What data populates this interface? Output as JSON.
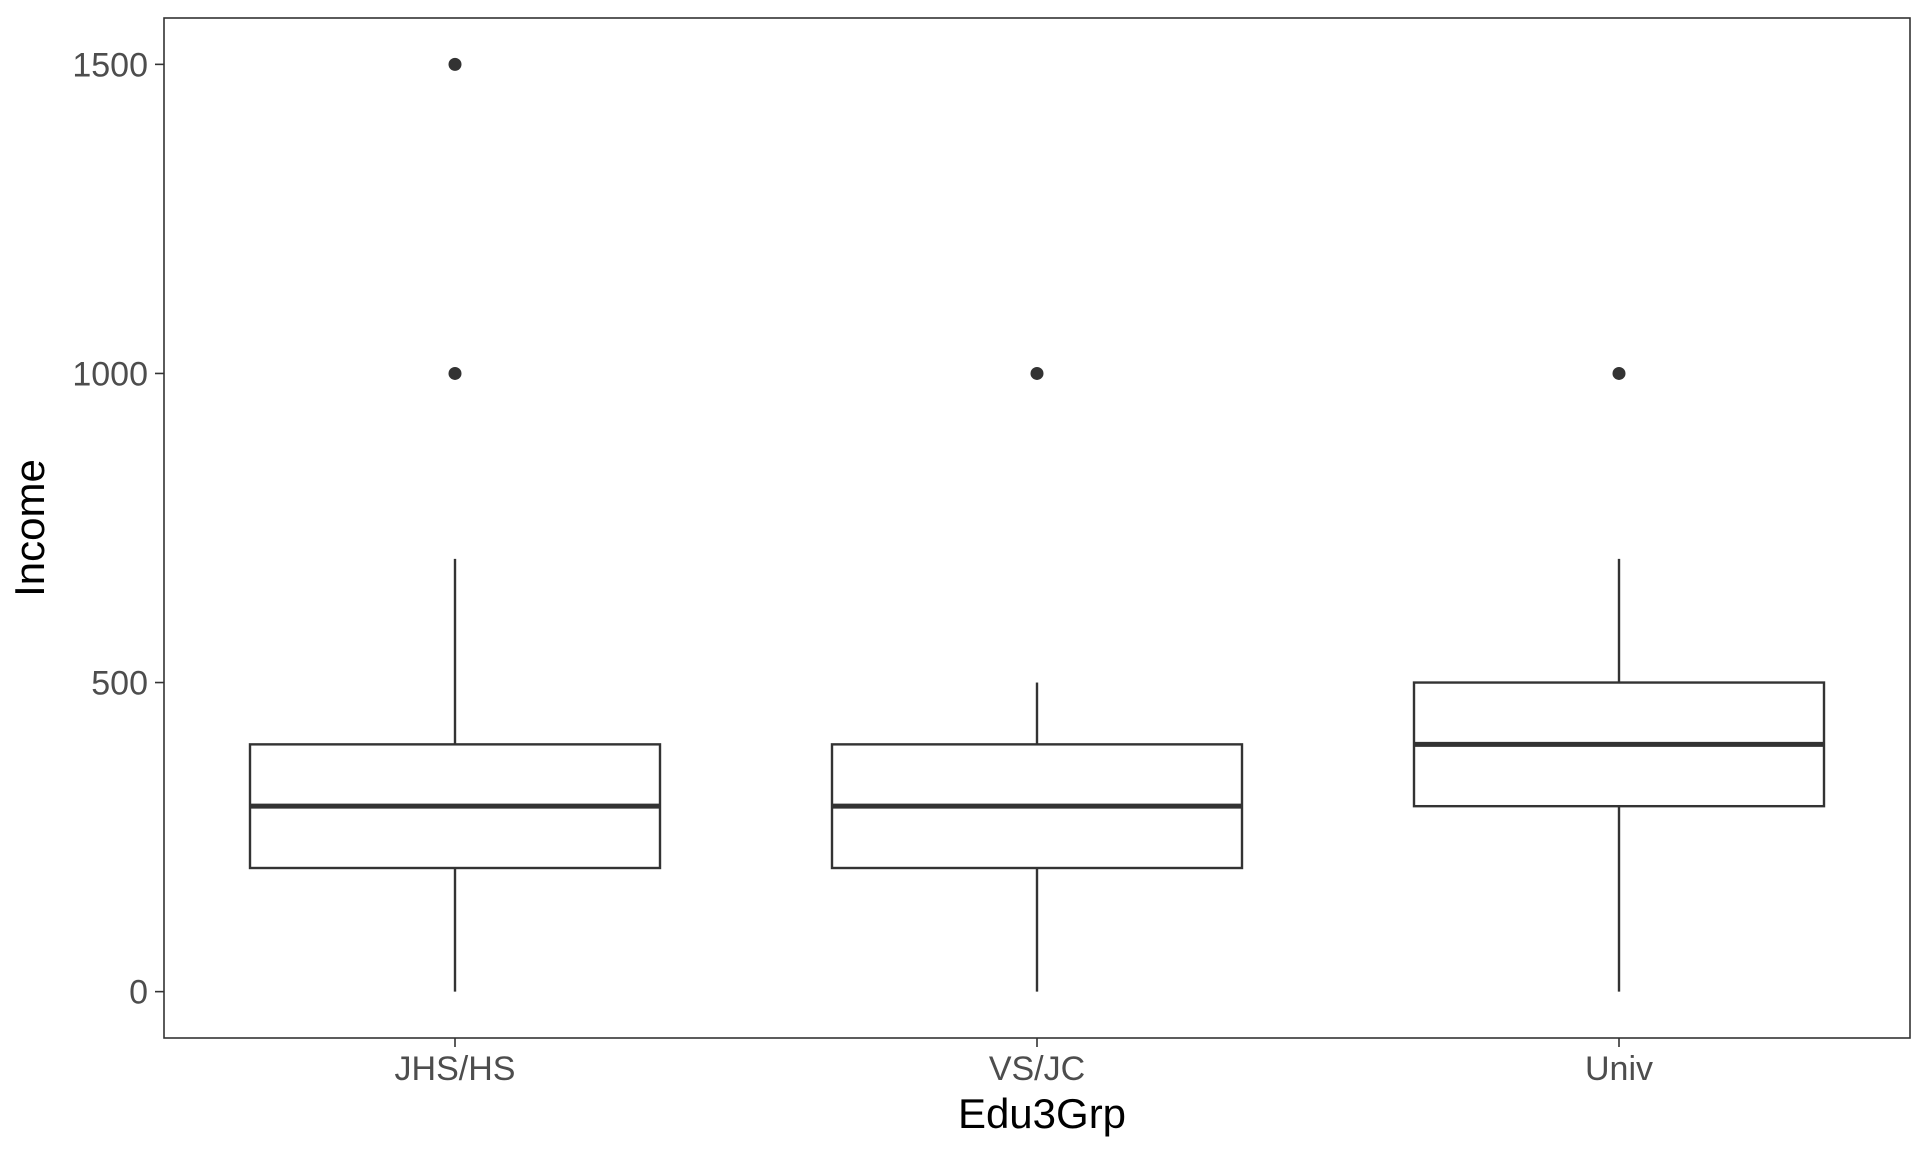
{
  "chart_data": {
    "type": "boxplot",
    "xlabel": "Edu3Grp",
    "ylabel": "Income",
    "ylim": [
      -75,
      1575
    ],
    "yticks": [
      0,
      500,
      1000,
      1500
    ],
    "grid": false,
    "categories": [
      "JHS/HS",
      "VS/JC",
      "Univ"
    ],
    "boxes": [
      {
        "category": "JHS/HS",
        "whisker_low": 0,
        "q1": 200,
        "median": 300,
        "q3": 400,
        "whisker_high": 700,
        "outliers": [
          1000,
          1500
        ]
      },
      {
        "category": "VS/JC",
        "whisker_low": 0,
        "q1": 200,
        "median": 300,
        "q3": 400,
        "whisker_high": 500,
        "outliers": [
          1000
        ]
      },
      {
        "category": "Univ",
        "whisker_low": 0,
        "q1": 300,
        "median": 400,
        "q3": 500,
        "whisker_high": 700,
        "outliers": [
          1000
        ]
      }
    ],
    "colors": {
      "box_stroke": "#333333",
      "box_fill": "#ffffff",
      "panel_border": "#333333",
      "tick_text": "#4d4d4d",
      "axis_title": "#000000"
    }
  }
}
